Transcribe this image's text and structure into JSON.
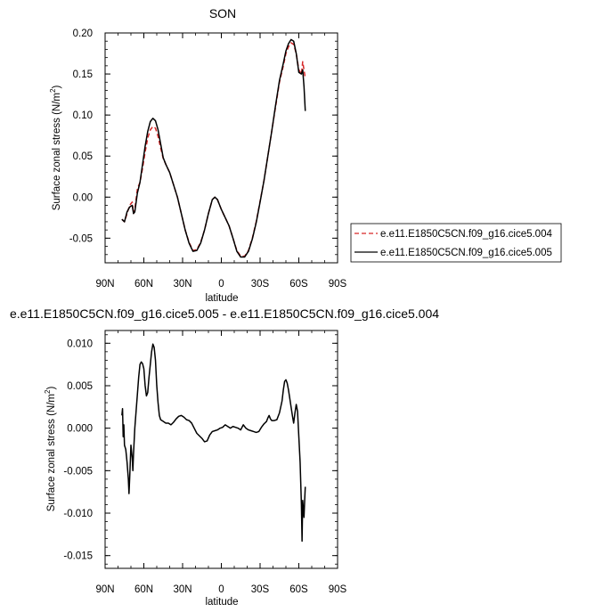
{
  "chart_data": [
    {
      "type": "line",
      "title": "SON",
      "xlabel": "latitude",
      "ylabel": "Surface zonal stress (N/m",
      "ylabel_sup": "2",
      "ylabel_close": ")",
      "xlim": [
        90,
        -90
      ],
      "ylim": [
        -0.08,
        0.2
      ],
      "x_ticks": [
        {
          "value": 90,
          "label": "90N"
        },
        {
          "value": 60,
          "label": "60N"
        },
        {
          "value": 30,
          "label": "30N"
        },
        {
          "value": 0,
          "label": "0"
        },
        {
          "value": -30,
          "label": "30S"
        },
        {
          "value": -60,
          "label": "60S"
        },
        {
          "value": -90,
          "label": "90S"
        }
      ],
      "y_ticks": [
        {
          "value": 0.2,
          "label": "0.20"
        },
        {
          "value": 0.15,
          "label": "0.15"
        },
        {
          "value": 0.1,
          "label": "0.10"
        },
        {
          "value": 0.05,
          "label": "0.05"
        },
        {
          "value": 0.0,
          "label": "0.00"
        },
        {
          "value": -0.05,
          "label": "-0.05"
        }
      ],
      "legend_position": "right",
      "series": [
        {
          "name": "e.e11.E1850C5CN.f09_g16.cice5.004",
          "color": "#d62728",
          "dash": "dashed",
          "points": [
            [
              77,
              -0.027
            ],
            [
              75,
              -0.03
            ],
            [
              73,
              -0.02
            ],
            [
              71,
              -0.01
            ],
            [
              69,
              -0.006
            ],
            [
              68,
              -0.02
            ],
            [
              67,
              -0.015
            ],
            [
              65,
              0.01
            ],
            [
              63,
              0.018
            ],
            [
              61,
              0.035
            ],
            [
              59,
              0.055
            ],
            [
              57,
              0.072
            ],
            [
              55,
              0.082
            ],
            [
              53,
              0.086
            ],
            [
              51,
              0.084
            ],
            [
              49,
              0.074
            ],
            [
              47,
              0.06
            ],
            [
              45,
              0.047
            ],
            [
              43,
              0.04
            ],
            [
              40,
              0.03
            ],
            [
              37,
              0.015
            ],
            [
              34,
              0.0
            ],
            [
              31,
              -0.02
            ],
            [
              28,
              -0.04
            ],
            [
              25,
              -0.055
            ],
            [
              22,
              -0.065
            ],
            [
              19,
              -0.064
            ],
            [
              16,
              -0.055
            ],
            [
              13,
              -0.04
            ],
            [
              10,
              -0.02
            ],
            [
              7,
              -0.003
            ],
            [
              5,
              0.0
            ],
            [
              3,
              -0.003
            ],
            [
              0,
              -0.015
            ],
            [
              -3,
              -0.025
            ],
            [
              -6,
              -0.035
            ],
            [
              -9,
              -0.05
            ],
            [
              -12,
              -0.065
            ],
            [
              -15,
              -0.072
            ],
            [
              -18,
              -0.072
            ],
            [
              -21,
              -0.065
            ],
            [
              -24,
              -0.05
            ],
            [
              -27,
              -0.03
            ],
            [
              -30,
              -0.005
            ],
            [
              -33,
              0.02
            ],
            [
              -36,
              0.05
            ],
            [
              -39,
              0.08
            ],
            [
              -42,
              0.11
            ],
            [
              -45,
              0.14
            ],
            [
              -48,
              0.16
            ],
            [
              -50,
              0.175
            ],
            [
              -52,
              0.183
            ],
            [
              -54,
              0.188
            ],
            [
              -56,
              0.186
            ],
            [
              -58,
              0.175
            ],
            [
              -60,
              0.155
            ],
            [
              -62,
              0.15
            ],
            [
              -63,
              0.165
            ],
            [
              -64,
              0.155
            ],
            [
              -65,
              0.145
            ]
          ]
        },
        {
          "name": "e.e11.E1850C5CN.f09_g16.cice5.005",
          "color": "#000000",
          "dash": "solid",
          "points": [
            [
              77,
              -0.027
            ],
            [
              75,
              -0.03
            ],
            [
              73,
              -0.018
            ],
            [
              71,
              -0.012
            ],
            [
              69,
              -0.01
            ],
            [
              68,
              -0.02
            ],
            [
              67,
              -0.018
            ],
            [
              65,
              0.005
            ],
            [
              63,
              0.018
            ],
            [
              61,
              0.04
            ],
            [
              59,
              0.062
            ],
            [
              57,
              0.08
            ],
            [
              55,
              0.092
            ],
            [
              53,
              0.096
            ],
            [
              51,
              0.093
            ],
            [
              49,
              0.082
            ],
            [
              47,
              0.065
            ],
            [
              45,
              0.048
            ],
            [
              43,
              0.04
            ],
            [
              40,
              0.03
            ],
            [
              37,
              0.015
            ],
            [
              34,
              0.0
            ],
            [
              31,
              -0.02
            ],
            [
              28,
              -0.04
            ],
            [
              25,
              -0.056
            ],
            [
              22,
              -0.066
            ],
            [
              19,
              -0.065
            ],
            [
              16,
              -0.056
            ],
            [
              13,
              -0.04
            ],
            [
              10,
              -0.02
            ],
            [
              7,
              -0.003
            ],
            [
              5,
              0.0
            ],
            [
              3,
              -0.003
            ],
            [
              0,
              -0.015
            ],
            [
              -3,
              -0.025
            ],
            [
              -6,
              -0.035
            ],
            [
              -9,
              -0.05
            ],
            [
              -12,
              -0.066
            ],
            [
              -15,
              -0.073
            ],
            [
              -18,
              -0.073
            ],
            [
              -21,
              -0.066
            ],
            [
              -24,
              -0.051
            ],
            [
              -27,
              -0.031
            ],
            [
              -30,
              -0.006
            ],
            [
              -33,
              0.02
            ],
            [
              -36,
              0.05
            ],
            [
              -39,
              0.08
            ],
            [
              -42,
              0.112
            ],
            [
              -45,
              0.142
            ],
            [
              -48,
              0.163
            ],
            [
              -50,
              0.178
            ],
            [
              -52,
              0.187
            ],
            [
              -54,
              0.192
            ],
            [
              -56,
              0.19
            ],
            [
              -58,
              0.175
            ],
            [
              -60,
              0.152
            ],
            [
              -62,
              0.15
            ],
            [
              -63,
              0.155
            ],
            [
              -64,
              0.135
            ],
            [
              -65,
              0.105
            ]
          ]
        }
      ]
    },
    {
      "type": "line",
      "title": "e.e11.E1850C5CN.f09_g16.cice5.005 - e.e11.E1850C5CN.f09_g16.cice5.004",
      "xlabel": "latitude",
      "ylabel": "Surface zonal stress (N/m",
      "ylabel_sup": "2",
      "ylabel_close": ")",
      "xlim": [
        90,
        -90
      ],
      "ylim": [
        -0.0165,
        0.0115
      ],
      "x_ticks": [
        {
          "value": 90,
          "label": "90N"
        },
        {
          "value": 60,
          "label": "60N"
        },
        {
          "value": 30,
          "label": "30N"
        },
        {
          "value": 0,
          "label": "0"
        },
        {
          "value": -30,
          "label": "30S"
        },
        {
          "value": -60,
          "label": "60S"
        },
        {
          "value": -90,
          "label": "90S"
        }
      ],
      "y_ticks": [
        {
          "value": 0.01,
          "label": "0.010"
        },
        {
          "value": 0.005,
          "label": "0.005"
        },
        {
          "value": 0.0,
          "label": "0.000"
        },
        {
          "value": -0.005,
          "label": "-0.005"
        },
        {
          "value": -0.01,
          "label": "-0.010"
        },
        {
          "value": -0.015,
          "label": "-0.015"
        }
      ],
      "series": [
        {
          "color": "#000000",
          "dash": "solid",
          "points": [
            [
              77,
              0.0015
            ],
            [
              76.5,
              0.0023
            ],
            [
              76,
              -0.001
            ],
            [
              75.5,
              0.0004
            ],
            [
              75,
              -0.002
            ],
            [
              74,
              -0.0025
            ],
            [
              73,
              -0.004
            ],
            [
              72,
              -0.006
            ],
            [
              71.5,
              -0.0077
            ],
            [
              71,
              -0.006
            ],
            [
              70,
              -0.002
            ],
            [
              69,
              -0.0035
            ],
            [
              68.5,
              -0.005
            ],
            [
              68,
              -0.003
            ],
            [
              67,
              0.0
            ],
            [
              66,
              0.002
            ],
            [
              65,
              0.004
            ],
            [
              64,
              0.006
            ],
            [
              63,
              0.0075
            ],
            [
              62,
              0.0078
            ],
            [
              61,
              0.0076
            ],
            [
              60,
              0.007
            ],
            [
              59,
              0.005
            ],
            [
              58,
              0.0038
            ],
            [
              57,
              0.0042
            ],
            [
              56,
              0.006
            ],
            [
              55,
              0.0075
            ],
            [
              54,
              0.009
            ],
            [
              53,
              0.0099
            ],
            [
              52,
              0.0095
            ],
            [
              51,
              0.008
            ],
            [
              50,
              0.005
            ],
            [
              49,
              0.003
            ],
            [
              48,
              0.0015
            ],
            [
              47,
              0.001
            ],
            [
              45,
              0.0008
            ],
            [
              43,
              0.0006
            ],
            [
              41,
              0.0006
            ],
            [
              39,
              0.0004
            ],
            [
              37,
              0.0007
            ],
            [
              35,
              0.0011
            ],
            [
              33,
              0.0014
            ],
            [
              31,
              0.0015
            ],
            [
              29,
              0.0013
            ],
            [
              27,
              0.001
            ],
            [
              25,
              0.0009
            ],
            [
              23,
              0.0006
            ],
            [
              21,
              0.0
            ],
            [
              19,
              -0.0006
            ],
            [
              17,
              -0.0009
            ],
            [
              15,
              -0.0012
            ],
            [
              13,
              -0.0016
            ],
            [
              11,
              -0.0015
            ],
            [
              9,
              -0.0008
            ],
            [
              7,
              -0.0004
            ],
            [
              5,
              -0.0003
            ],
            [
              3,
              -0.0002
            ],
            [
              1,
              0.0
            ],
            [
              -1,
              0.0001
            ],
            [
              -3,
              0.0004
            ],
            [
              -5,
              0.0002
            ],
            [
              -7,
              0.0
            ],
            [
              -9,
              0.0002
            ],
            [
              -11,
              0.0001
            ],
            [
              -13,
              0.0
            ],
            [
              -15,
              -0.0002
            ],
            [
              -17,
              0.0004
            ],
            [
              -19,
              0.0
            ],
            [
              -21,
              -0.0002
            ],
            [
              -23,
              -0.0003
            ],
            [
              -25,
              -0.0004
            ],
            [
              -27,
              -0.0005
            ],
            [
              -29,
              -0.0004
            ],
            [
              -31,
              0.0001
            ],
            [
              -33,
              0.0005
            ],
            [
              -35,
              0.0008
            ],
            [
              -36,
              0.0012
            ],
            [
              -37,
              0.0015
            ],
            [
              -38,
              0.0011
            ],
            [
              -39,
              0.0009
            ],
            [
              -41,
              0.0009
            ],
            [
              -43,
              0.001
            ],
            [
              -45,
              0.0018
            ],
            [
              -47,
              0.0032
            ],
            [
              -48,
              0.0045
            ],
            [
              -49,
              0.0055
            ],
            [
              -50,
              0.0057
            ],
            [
              -51,
              0.0053
            ],
            [
              -52,
              0.0045
            ],
            [
              -53,
              0.0035
            ],
            [
              -54,
              0.0025
            ],
            [
              -55,
              0.0015
            ],
            [
              -56,
              0.0006
            ],
            [
              -57,
              0.0018
            ],
            [
              -58,
              0.0028
            ],
            [
              -59,
              0.002
            ],
            [
              -60,
              -0.001
            ],
            [
              -61,
              -0.004
            ],
            [
              -62,
              -0.009
            ],
            [
              -62.5,
              -0.0133
            ],
            [
              -63,
              -0.0085
            ],
            [
              -63.5,
              -0.0095
            ],
            [
              -64,
              -0.0105
            ],
            [
              -64.5,
              -0.0086
            ],
            [
              -65,
              -0.0069
            ]
          ]
        }
      ]
    }
  ]
}
